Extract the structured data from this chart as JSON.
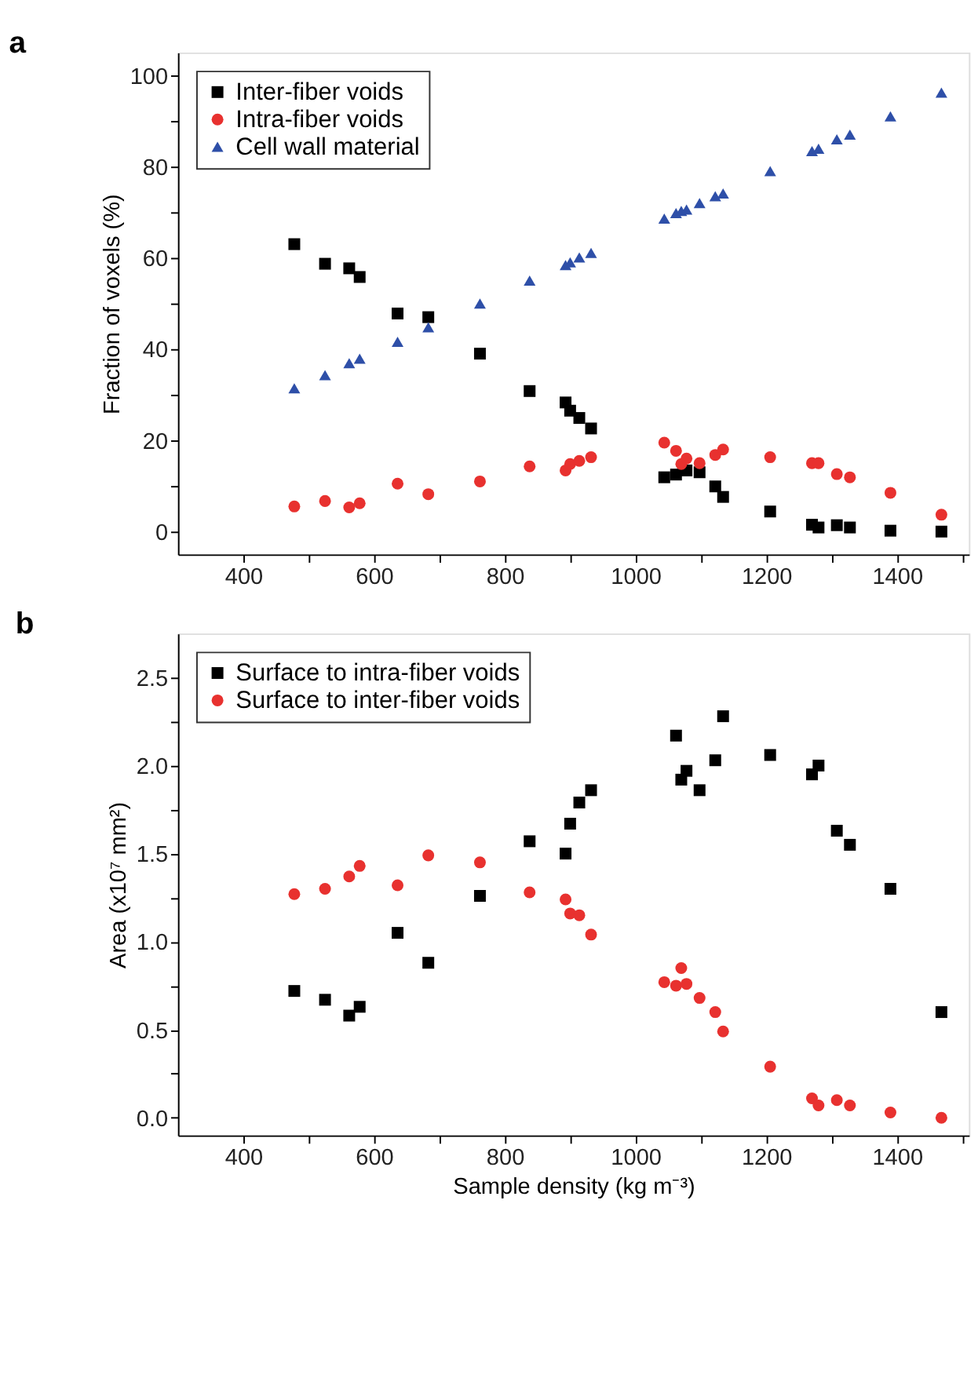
{
  "chart_data": [
    {
      "type": "scatter",
      "title": "a",
      "ylabel": "Fraction of voxels (%)",
      "x": [
        478,
        525,
        562,
        578,
        636,
        683,
        762,
        838,
        893,
        900,
        914,
        932,
        1044,
        1062,
        1070,
        1078,
        1098,
        1122,
        1134,
        1206,
        1270,
        1280,
        1308,
        1328,
        1390,
        1468
      ],
      "series": [
        {
          "name": "Inter-fiber voids",
          "color": "#000000",
          "marker": "square",
          "values": [
            63,
            58.7,
            57.7,
            55.8,
            47.8,
            47,
            39,
            30.8,
            28.3,
            26.5,
            24.9,
            22.6,
            11.9,
            12.5,
            null,
            13.4,
            13,
            9.9,
            7.6,
            4.4,
            1.5,
            0.9,
            1.4,
            0.9,
            0.2,
            0
          ]
        },
        {
          "name": "Intra-fiber voids",
          "color": "#e8312f",
          "marker": "circle",
          "values": [
            5.5,
            6.7,
            5.3,
            6.2,
            10.5,
            8.2,
            11,
            14.3,
            13.4,
            14.8,
            15.5,
            16.3,
            19.5,
            17.7,
            14.8,
            16,
            15,
            16.8,
            18,
            16.3,
            15,
            15,
            12.6,
            11.9,
            8.5,
            3.7
          ]
        },
        {
          "name": "Cell wall material",
          "color": "#2e4fa8",
          "marker": "triangle",
          "values": [
            31.4,
            34.3,
            36.9,
            37.9,
            41.6,
            44.8,
            50,
            55,
            58.4,
            59,
            60.1,
            61.1,
            68.6,
            69.8,
            70.3,
            70.6,
            72,
            73.5,
            74.1,
            79,
            83.4,
            83.9,
            86,
            87,
            91,
            96.2
          ]
        }
      ],
      "xlim": [
        300,
        1510
      ],
      "ylim": [
        -5,
        105
      ],
      "xticks": [
        400,
        {
          "value": 500,
          "label": null
        },
        600,
        {
          "value": 700,
          "label": null
        },
        800,
        {
          "value": 900,
          "label": null
        },
        1000,
        {
          "value": 1100,
          "label": null
        },
        1200,
        {
          "value": 1300,
          "label": null
        },
        1400,
        {
          "value": 1500,
          "label": null
        }
      ],
      "yticks": [
        0,
        {
          "value": 10,
          "label": null
        },
        20,
        {
          "value": 30,
          "label": null
        },
        40,
        {
          "value": 50,
          "label": null
        },
        60,
        {
          "value": 70,
          "label": null
        },
        80,
        {
          "value": 90,
          "label": null
        },
        100
      ],
      "grid": false,
      "legend": "top left"
    },
    {
      "type": "scatter",
      "title": "b",
      "xlabel": "Sample density (kg m⁻³)",
      "ylabel": "Area  (x10⁷ mm²)",
      "x": [
        478,
        525,
        562,
        578,
        636,
        683,
        762,
        838,
        893,
        900,
        914,
        932,
        1044,
        1062,
        1070,
        1078,
        1098,
        1122,
        1134,
        1206,
        1270,
        1280,
        1308,
        1328,
        1390,
        1468
      ],
      "series": [
        {
          "name": "Surface to intra-fiber voids",
          "color": "#000000",
          "marker": "square",
          "values": [
            0.72,
            0.67,
            0.58,
            0.63,
            1.05,
            0.88,
            1.26,
            1.57,
            1.5,
            1.67,
            1.79,
            1.86,
            null,
            2.17,
            1.92,
            1.97,
            1.86,
            2.03,
            2.28,
            2.06,
            1.95,
            2.0,
            1.63,
            1.55,
            1.3,
            0.6
          ]
        },
        {
          "name": "Surface to inter-fiber voids",
          "color": "#e8312f",
          "marker": "circle",
          "values": [
            1.27,
            1.3,
            1.37,
            1.43,
            1.32,
            1.49,
            1.45,
            1.28,
            1.24,
            1.16,
            1.15,
            1.04,
            0.77,
            0.75,
            0.85,
            0.76,
            0.68,
            0.6,
            0.49,
            0.29,
            0.11,
            0.07,
            0.1,
            0.07,
            0.03,
            0.0
          ]
        }
      ],
      "xlim": [
        300,
        1510
      ],
      "ylim": [
        -0.1,
        2.75
      ],
      "xticks": [
        400,
        {
          "value": 500,
          "label": null
        },
        600,
        {
          "value": 700,
          "label": null
        },
        800,
        {
          "value": 900,
          "label": null
        },
        1000,
        {
          "value": 1100,
          "label": null
        },
        1200,
        {
          "value": 1300,
          "label": null
        },
        1400,
        {
          "value": 1500,
          "label": null
        }
      ],
      "yticks": [
        {
          "value": 0,
          "label": "0.0"
        },
        {
          "value": 0.25,
          "label": null
        },
        0.5,
        {
          "value": 0.75,
          "label": null
        },
        {
          "value": 1,
          "label": "1.0"
        },
        {
          "value": 1.25,
          "label": null
        },
        1.5,
        {
          "value": 1.75,
          "label": null
        },
        {
          "value": 2,
          "label": "2.0"
        },
        {
          "value": 2.25,
          "label": null
        },
        2.5
      ],
      "grid": false,
      "legend": "top left"
    }
  ]
}
